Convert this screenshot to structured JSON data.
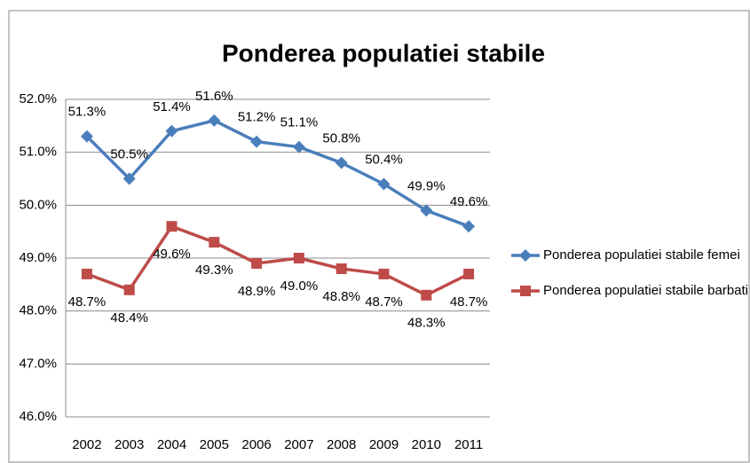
{
  "chart_data": {
    "type": "line",
    "title": "Ponderea populatiei stabile",
    "categories": [
      "2002",
      "2003",
      "2004",
      "2005",
      "2006",
      "2007",
      "2008",
      "2009",
      "2010",
      "2011"
    ],
    "series": [
      {
        "name": "Ponderea populatiei stabile femei",
        "color": "#4a7ebb",
        "marker": "diamond",
        "values": [
          51.3,
          50.5,
          51.4,
          51.6,
          51.2,
          51.1,
          50.8,
          50.4,
          49.9,
          49.6
        ],
        "value_labels": [
          "51.3%",
          "50.5%",
          "51.4%",
          "51.6%",
          "51.2%",
          "51.1%",
          "50.8%",
          "50.4%",
          "49.9%",
          "49.6%"
        ]
      },
      {
        "name": "Ponderea populatiei stabile barbati",
        "color": "#be4b48",
        "marker": "square",
        "values": [
          48.7,
          48.4,
          49.6,
          49.3,
          48.9,
          49.0,
          48.8,
          48.7,
          48.3,
          48.7
        ],
        "value_labels": [
          "48.7%",
          "48.4%",
          "49.6%",
          "49.3%",
          "48.9%",
          "49.0%",
          "48.8%",
          "48.7%",
          "48.3%",
          "48.7%"
        ]
      }
    ],
    "ylim": [
      46,
      52
    ],
    "yticks": [
      {
        "value": 46,
        "label": "46.0%"
      },
      {
        "value": 47,
        "label": "47.0%"
      },
      {
        "value": 48,
        "label": "48.0%"
      },
      {
        "value": 49,
        "label": "49.0%"
      },
      {
        "value": 50,
        "label": "50.0%"
      },
      {
        "value": 51,
        "label": "51.0%"
      },
      {
        "value": 52,
        "label": "52.0%"
      }
    ],
    "grid": true,
    "legend": "right"
  }
}
